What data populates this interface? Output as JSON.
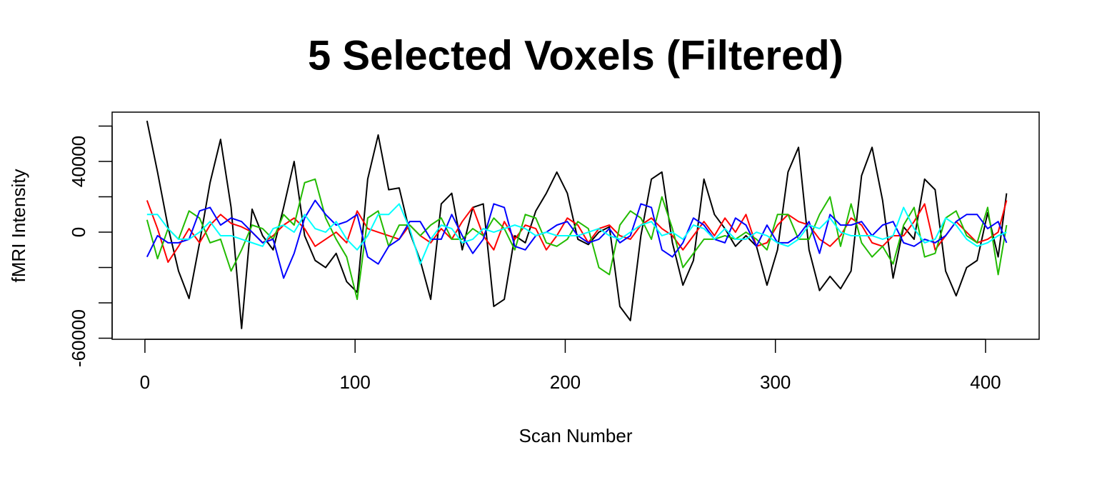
{
  "chart_data": {
    "type": "line",
    "title": "5 Selected Voxels (Filtered)",
    "xlabel": "Scan Number",
    "ylabel": "fMRI Intensity",
    "x": [
      1,
      6,
      11,
      16,
      21,
      26,
      31,
      36,
      41,
      46,
      51,
      56,
      61,
      66,
      71,
      76,
      81,
      86,
      91,
      96,
      101,
      106,
      111,
      116,
      121,
      126,
      131,
      136,
      141,
      146,
      151,
      156,
      161,
      166,
      171,
      176,
      181,
      186,
      191,
      196,
      201,
      206,
      211,
      216,
      221,
      226,
      231,
      236,
      241,
      246,
      251,
      256,
      261,
      266,
      271,
      276,
      281,
      286,
      291,
      296,
      301,
      306,
      311,
      316,
      321,
      326,
      331,
      336,
      341,
      346,
      351,
      356,
      361,
      366,
      371,
      376,
      381,
      386,
      391,
      396,
      401,
      406,
      410
    ],
    "xlim": [
      -15.6,
      425.5
    ],
    "xticks": [
      0,
      100,
      200,
      300,
      400
    ],
    "ylim": [
      -60600,
      67900
    ],
    "yticks": [
      -60000,
      {
        "value": -40000,
        "label": null
      },
      {
        "value": -20000,
        "label": null
      },
      0,
      {
        "value": 20000,
        "label": null
      },
      40000,
      {
        "value": 60000,
        "label": null
      }
    ],
    "series": [
      {
        "color": "#000000",
        "values": [
          63000,
          34000,
          3000,
          -22000,
          -37500,
          -6000,
          28000,
          52500,
          14000,
          -54500,
          13000,
          -2000,
          -10000,
          14000,
          40000,
          -2000,
          -16000,
          -20000,
          -12000,
          -28000,
          -34000,
          30000,
          55000,
          24000,
          25000,
          0,
          -16000,
          -38000,
          16000,
          22000,
          -10000,
          14000,
          16000,
          -42000,
          -38000,
          -2000,
          -6000,
          12000,
          22000,
          34000,
          22000,
          -4000,
          -7000,
          0,
          3000,
          -42000,
          -50000,
          -2000,
          30000,
          34000,
          -6000,
          -30000,
          -16000,
          30000,
          10000,
          2000,
          -8000,
          -2000,
          -8000,
          -30000,
          -10000,
          34000,
          48000,
          -10000,
          -33000,
          -25000,
          -32000,
          -22000,
          32000,
          48000,
          18000,
          -26000,
          3000,
          -4000,
          30000,
          24000,
          -22000,
          -36000,
          -20000,
          -16000,
          11000,
          -14000,
          22000
        ]
      },
      {
        "color": "#ff0000",
        "values": [
          18000,
          2000,
          -17000,
          -8000,
          2000,
          -6000,
          4000,
          10000,
          5000,
          3000,
          0,
          -6000,
          -2000,
          4000,
          8000,
          2000,
          -8000,
          -4000,
          0,
          -6000,
          12000,
          2000,
          0,
          -2000,
          -4000,
          4000,
          -2000,
          -6000,
          2000,
          -4000,
          6000,
          14000,
          -2000,
          -10000,
          6000,
          -4000,
          4000,
          2000,
          -10000,
          -2000,
          8000,
          4000,
          -6000,
          2000,
          4000,
          -2000,
          -4000,
          4000,
          8000,
          2000,
          -2000,
          -10000,
          -2000,
          6000,
          -2000,
          8000,
          0,
          10000,
          -8000,
          -6000,
          4000,
          10000,
          6000,
          4000,
          -4000,
          -8000,
          -2000,
          8000,
          4000,
          -6000,
          -8000,
          -2000,
          -2000,
          6000,
          16000,
          -10000,
          -2000,
          6000,
          0,
          -6000,
          -4000,
          0,
          18000
        ]
      },
      {
        "color": "#22bb00",
        "values": [
          7000,
          -15000,
          2000,
          -4000,
          12000,
          8000,
          -6000,
          -4000,
          -22000,
          -10000,
          4000,
          2000,
          -4000,
          10000,
          4000,
          28000,
          30000,
          8000,
          -4000,
          -14000,
          -38000,
          8000,
          12000,
          -8000,
          4000,
          4000,
          -2000,
          4000,
          8000,
          -4000,
          -4000,
          2000,
          -2000,
          8000,
          2000,
          -10000,
          10000,
          8000,
          -6000,
          -8000,
          -4000,
          6000,
          2000,
          -20000,
          -24000,
          4000,
          12000,
          8000,
          -4000,
          20000,
          2000,
          -20000,
          -12000,
          -4000,
          -4000,
          -2000,
          -4000,
          0,
          -4000,
          -10000,
          10000,
          10000,
          -4000,
          -4000,
          10000,
          20000,
          -8000,
          16000,
          -6000,
          -14000,
          -8000,
          -18000,
          4000,
          14000,
          -14000,
          -12000,
          8000,
          12000,
          -2000,
          -6000,
          14000,
          -24000,
          4000
        ]
      },
      {
        "color": "#0000ff",
        "values": [
          -14000,
          -2000,
          -6000,
          -6000,
          -4000,
          12000,
          14000,
          4000,
          8000,
          6000,
          0,
          -6000,
          -4000,
          -26000,
          -12000,
          8000,
          18000,
          10000,
          4000,
          6000,
          10000,
          -14000,
          -18000,
          -8000,
          -4000,
          6000,
          6000,
          -4000,
          -4000,
          10000,
          -2000,
          -12000,
          -4000,
          16000,
          14000,
          -8000,
          -10000,
          -2000,
          0,
          4000,
          6000,
          -2000,
          -6000,
          -4000,
          2000,
          -6000,
          -2000,
          16000,
          14000,
          -10000,
          -14000,
          -6000,
          8000,
          4000,
          -4000,
          -6000,
          8000,
          4000,
          -8000,
          4000,
          -6000,
          -6000,
          -2000,
          6000,
          -12000,
          10000,
          4000,
          4000,
          6000,
          -2000,
          4000,
          6000,
          -6000,
          -8000,
          -4000,
          -6000,
          -2000,
          6000,
          10000,
          10000,
          2000,
          6000,
          -6000
        ]
      },
      {
        "color": "#00ffff",
        "values": [
          10000,
          10000,
          2000,
          -4000,
          -4000,
          0,
          6000,
          -2000,
          -2000,
          -4000,
          -6000,
          -8000,
          2000,
          4000,
          0,
          10000,
          2000,
          0,
          6000,
          -4000,
          -10000,
          -2000,
          10000,
          10000,
          16000,
          2000,
          -18000,
          -4000,
          4000,
          2000,
          -6000,
          -4000,
          2000,
          0,
          2000,
          4000,
          2000,
          -2000,
          0,
          -2000,
          -2000,
          -2000,
          0,
          2000,
          -2000,
          -4000,
          0,
          4000,
          6000,
          -2000,
          0,
          -4000,
          4000,
          2000,
          -4000,
          2000,
          -4000,
          -4000,
          0,
          -2000,
          -6000,
          -8000,
          -4000,
          4000,
          2000,
          8000,
          0,
          -2000,
          -2000,
          -2000,
          -4000,
          -2000,
          14000,
          2000,
          -6000,
          -4000,
          8000,
          4000,
          -4000,
          -8000,
          -6000,
          -2000,
          0
        ]
      }
    ]
  }
}
